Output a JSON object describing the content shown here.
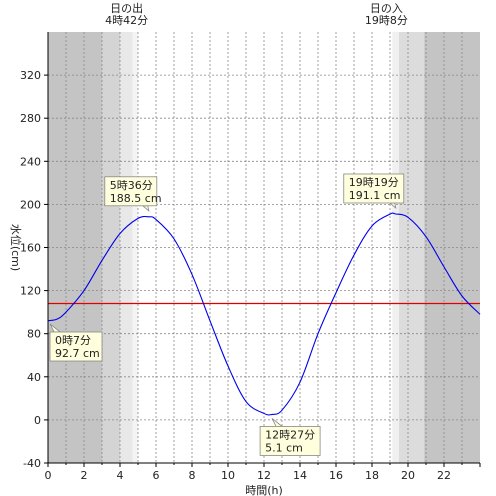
{
  "chart_data": {
    "type": "line",
    "xlabel": "時間(h)",
    "ylabel": "水位(cm)",
    "xlim": [
      0,
      24
    ],
    "ylim": [
      -40,
      360
    ],
    "xticks": [
      0,
      2,
      4,
      6,
      8,
      10,
      12,
      14,
      16,
      18,
      20,
      22
    ],
    "yticks": [
      -40,
      0,
      40,
      80,
      120,
      160,
      200,
      240,
      280,
      320
    ],
    "grid": true,
    "reference_line": {
      "value": 108,
      "color": "#e00000"
    },
    "series": [
      {
        "color": "#0000ee",
        "x": [
          0,
          0.5,
          1,
          2,
          3,
          4,
          5,
          5.6,
          6,
          7,
          8,
          9,
          10,
          11,
          12,
          12.45,
          13,
          14,
          15,
          16,
          17,
          18,
          19,
          19.32,
          20,
          21,
          22,
          23,
          24
        ],
        "y": [
          92,
          93.5,
          100,
          120,
          148,
          173,
          187,
          188.5,
          186,
          168,
          135,
          92,
          50,
          17,
          6,
          5.1,
          9,
          35,
          80,
          118,
          153,
          180,
          191,
          191.1,
          188,
          170,
          142,
          115,
          98
        ]
      }
    ],
    "annotations": [
      {
        "time": "5時36分",
        "value": "188.5 cm",
        "x": 5.6,
        "y": 188.5,
        "pos": "above"
      },
      {
        "time": "19時19分",
        "value": "191.1 cm",
        "x": 19.32,
        "y": 191.1,
        "pos": "above"
      },
      {
        "time": "0時7分",
        "value": "92.7 cm",
        "x": 0.12,
        "y": 92.7,
        "pos": "below"
      },
      {
        "time": "12時27分",
        "value": "5.1 cm",
        "x": 12.45,
        "y": 5.1,
        "pos": "below"
      }
    ],
    "sunrise": {
      "label": "日の出",
      "time": "4時42分",
      "hour": 4.7
    },
    "sunset": {
      "label": "日の入",
      "time": "19時8分",
      "hour": 19.13
    },
    "shading": [
      {
        "from": 0,
        "to": 3,
        "color": "#c4c4c4"
      },
      {
        "from": 3,
        "to": 4,
        "color": "#d4d4d4"
      },
      {
        "from": 4,
        "to": 4.7,
        "color": "#e8e8e8"
      },
      {
        "from": 4.7,
        "to": 5,
        "color": "#f4f4f4"
      },
      {
        "from": 19.13,
        "to": 19.5,
        "color": "#f0f0f0"
      },
      {
        "from": 19.5,
        "to": 20.9,
        "color": "#dcdcdc"
      },
      {
        "from": 20.9,
        "to": 24,
        "color": "#c4c4c4"
      }
    ],
    "colors": {
      "axis": "#000000",
      "grid": "#888888",
      "annotation_bg": "#ffffdd",
      "annotation_border": "#888888"
    }
  }
}
